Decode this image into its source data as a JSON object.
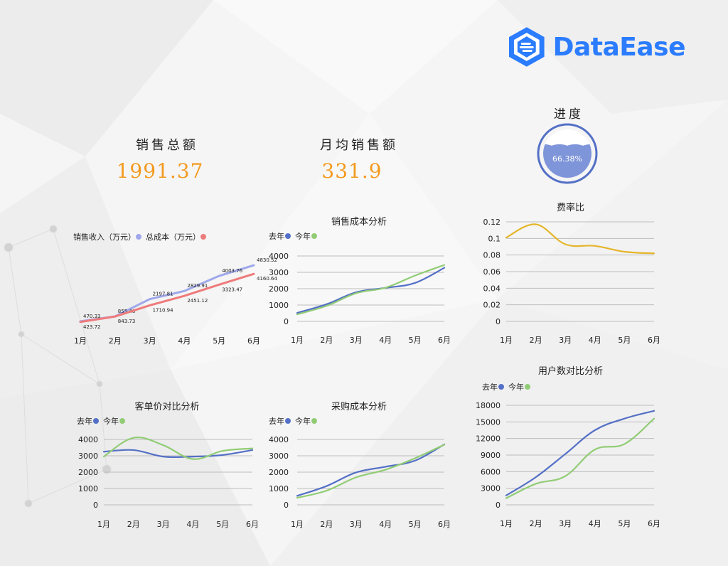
{
  "brand": {
    "name": "DataEase",
    "color": "#2b7cff"
  },
  "kpi_total": {
    "title": "销售总额",
    "value": "1991.37"
  },
  "kpi_avg": {
    "title": "月均销售额",
    "value": "331.9"
  },
  "progress": {
    "title": "进度",
    "label": "66.38%",
    "fraction": 0.6638
  },
  "colors": {
    "blue": "#5470c6",
    "green": "#91cc75",
    "purple": "#9fa8ea",
    "red": "#ee7b7b",
    "yellow": "#e5b52a",
    "orange": "#f39a1e"
  },
  "chart_data": [
    {
      "id": "sales",
      "type": "line",
      "title": "",
      "legend_position": "top-left",
      "grid": false,
      "categories": [
        "1月",
        "2月",
        "3月",
        "4月",
        "5月",
        "6月"
      ],
      "ylim": [
        300,
        5000
      ],
      "yticks": [],
      "series": [
        {
          "name": "销售收入（万元）",
          "color": "#9fa8ea",
          "values": [
            470.33,
            855.48,
            2197.81,
            2829.91,
            4003.76,
            4830.52
          ],
          "labels": [
            "470.33",
            "855.48",
            "2197.81",
            "2829.91",
            "4003.76",
            "4830.52"
          ]
        },
        {
          "name": "总成本（万元）",
          "color": "#ee7b7b",
          "values": [
            423.72,
            843.73,
            1710.94,
            2451.12,
            3323.47,
            4160.64
          ],
          "labels": [
            "423.72",
            "843.73",
            "1710.94",
            "2451.12",
            "3323.47",
            "4160.64"
          ]
        }
      ]
    },
    {
      "id": "cost",
      "type": "line",
      "title": "销售成本分析",
      "legend_position": "top-left",
      "grid": true,
      "categories": [
        "1月",
        "2月",
        "3月",
        "4月",
        "5月",
        "6月"
      ],
      "ylim": [
        0,
        4000
      ],
      "yticks": [
        0,
        1000,
        2000,
        3000,
        4000
      ],
      "series": [
        {
          "name": "去年",
          "color": "#5470c6",
          "values": [
            520,
            1050,
            1780,
            2050,
            2350,
            3280
          ]
        },
        {
          "name": "今年",
          "color": "#91cc75",
          "values": [
            430,
            950,
            1720,
            2060,
            2800,
            3450
          ]
        }
      ]
    },
    {
      "id": "ratio",
      "type": "line",
      "title": "费率比",
      "legend_position": "none",
      "grid": true,
      "categories": [
        "1月",
        "2月",
        "3月",
        "4月",
        "5月",
        "6月"
      ],
      "ylim": [
        0,
        0.12
      ],
      "yticks": [
        0,
        0.02,
        0.04,
        0.06,
        0.08,
        0.1,
        0.12
      ],
      "tick_labels": [
        "0",
        "0.02",
        "0.04",
        "0.06",
        "0.08",
        "0.1",
        "0.12"
      ],
      "series": [
        {
          "name": "",
          "color": "#e5b52a",
          "values": [
            0.101,
            0.117,
            0.093,
            0.091,
            0.084,
            0.082
          ]
        }
      ]
    },
    {
      "id": "unit",
      "type": "line",
      "title": "客单价对比分析",
      "legend_position": "top-left",
      "grid": true,
      "categories": [
        "1月",
        "2月",
        "3月",
        "4月",
        "5月",
        "6月"
      ],
      "ylim": [
        0,
        4000
      ],
      "yticks": [
        0,
        1000,
        2000,
        3000,
        4000
      ],
      "series": [
        {
          "name": "去年",
          "color": "#5470c6",
          "values": [
            3250,
            3350,
            2950,
            2950,
            3050,
            3350
          ]
        },
        {
          "name": "今年",
          "color": "#91cc75",
          "values": [
            2950,
            4100,
            3650,
            2800,
            3300,
            3450
          ]
        }
      ]
    },
    {
      "id": "purchase",
      "type": "line",
      "title": "采购成本分析",
      "legend_position": "top-left",
      "grid": true,
      "categories": [
        "1月",
        "2月",
        "3月",
        "4月",
        "5月",
        "6月"
      ],
      "ylim": [
        0,
        4000
      ],
      "yticks": [
        0,
        1000,
        2000,
        3000,
        4000
      ],
      "series": [
        {
          "name": "去年",
          "color": "#5470c6",
          "values": [
            550,
            1150,
            1980,
            2330,
            2700,
            3700
          ]
        },
        {
          "name": "今年",
          "color": "#91cc75",
          "values": [
            430,
            870,
            1680,
            2150,
            2850,
            3680
          ]
        }
      ]
    },
    {
      "id": "users",
      "type": "line",
      "title": "用户数对比分析",
      "legend_position": "top-left",
      "grid": true,
      "categories": [
        "1月",
        "2月",
        "3月",
        "4月",
        "5月",
        "6月"
      ],
      "ylim": [
        0,
        18000
      ],
      "yticks": [
        0,
        3000,
        6000,
        9000,
        12000,
        15000,
        18000
      ],
      "series": [
        {
          "name": "去年",
          "color": "#5470c6",
          "values": [
            1700,
            5000,
            9200,
            13500,
            15600,
            17000
          ]
        },
        {
          "name": "今年",
          "color": "#91cc75",
          "values": [
            1200,
            3800,
            5200,
            10000,
            11000,
            15600
          ]
        }
      ]
    }
  ]
}
